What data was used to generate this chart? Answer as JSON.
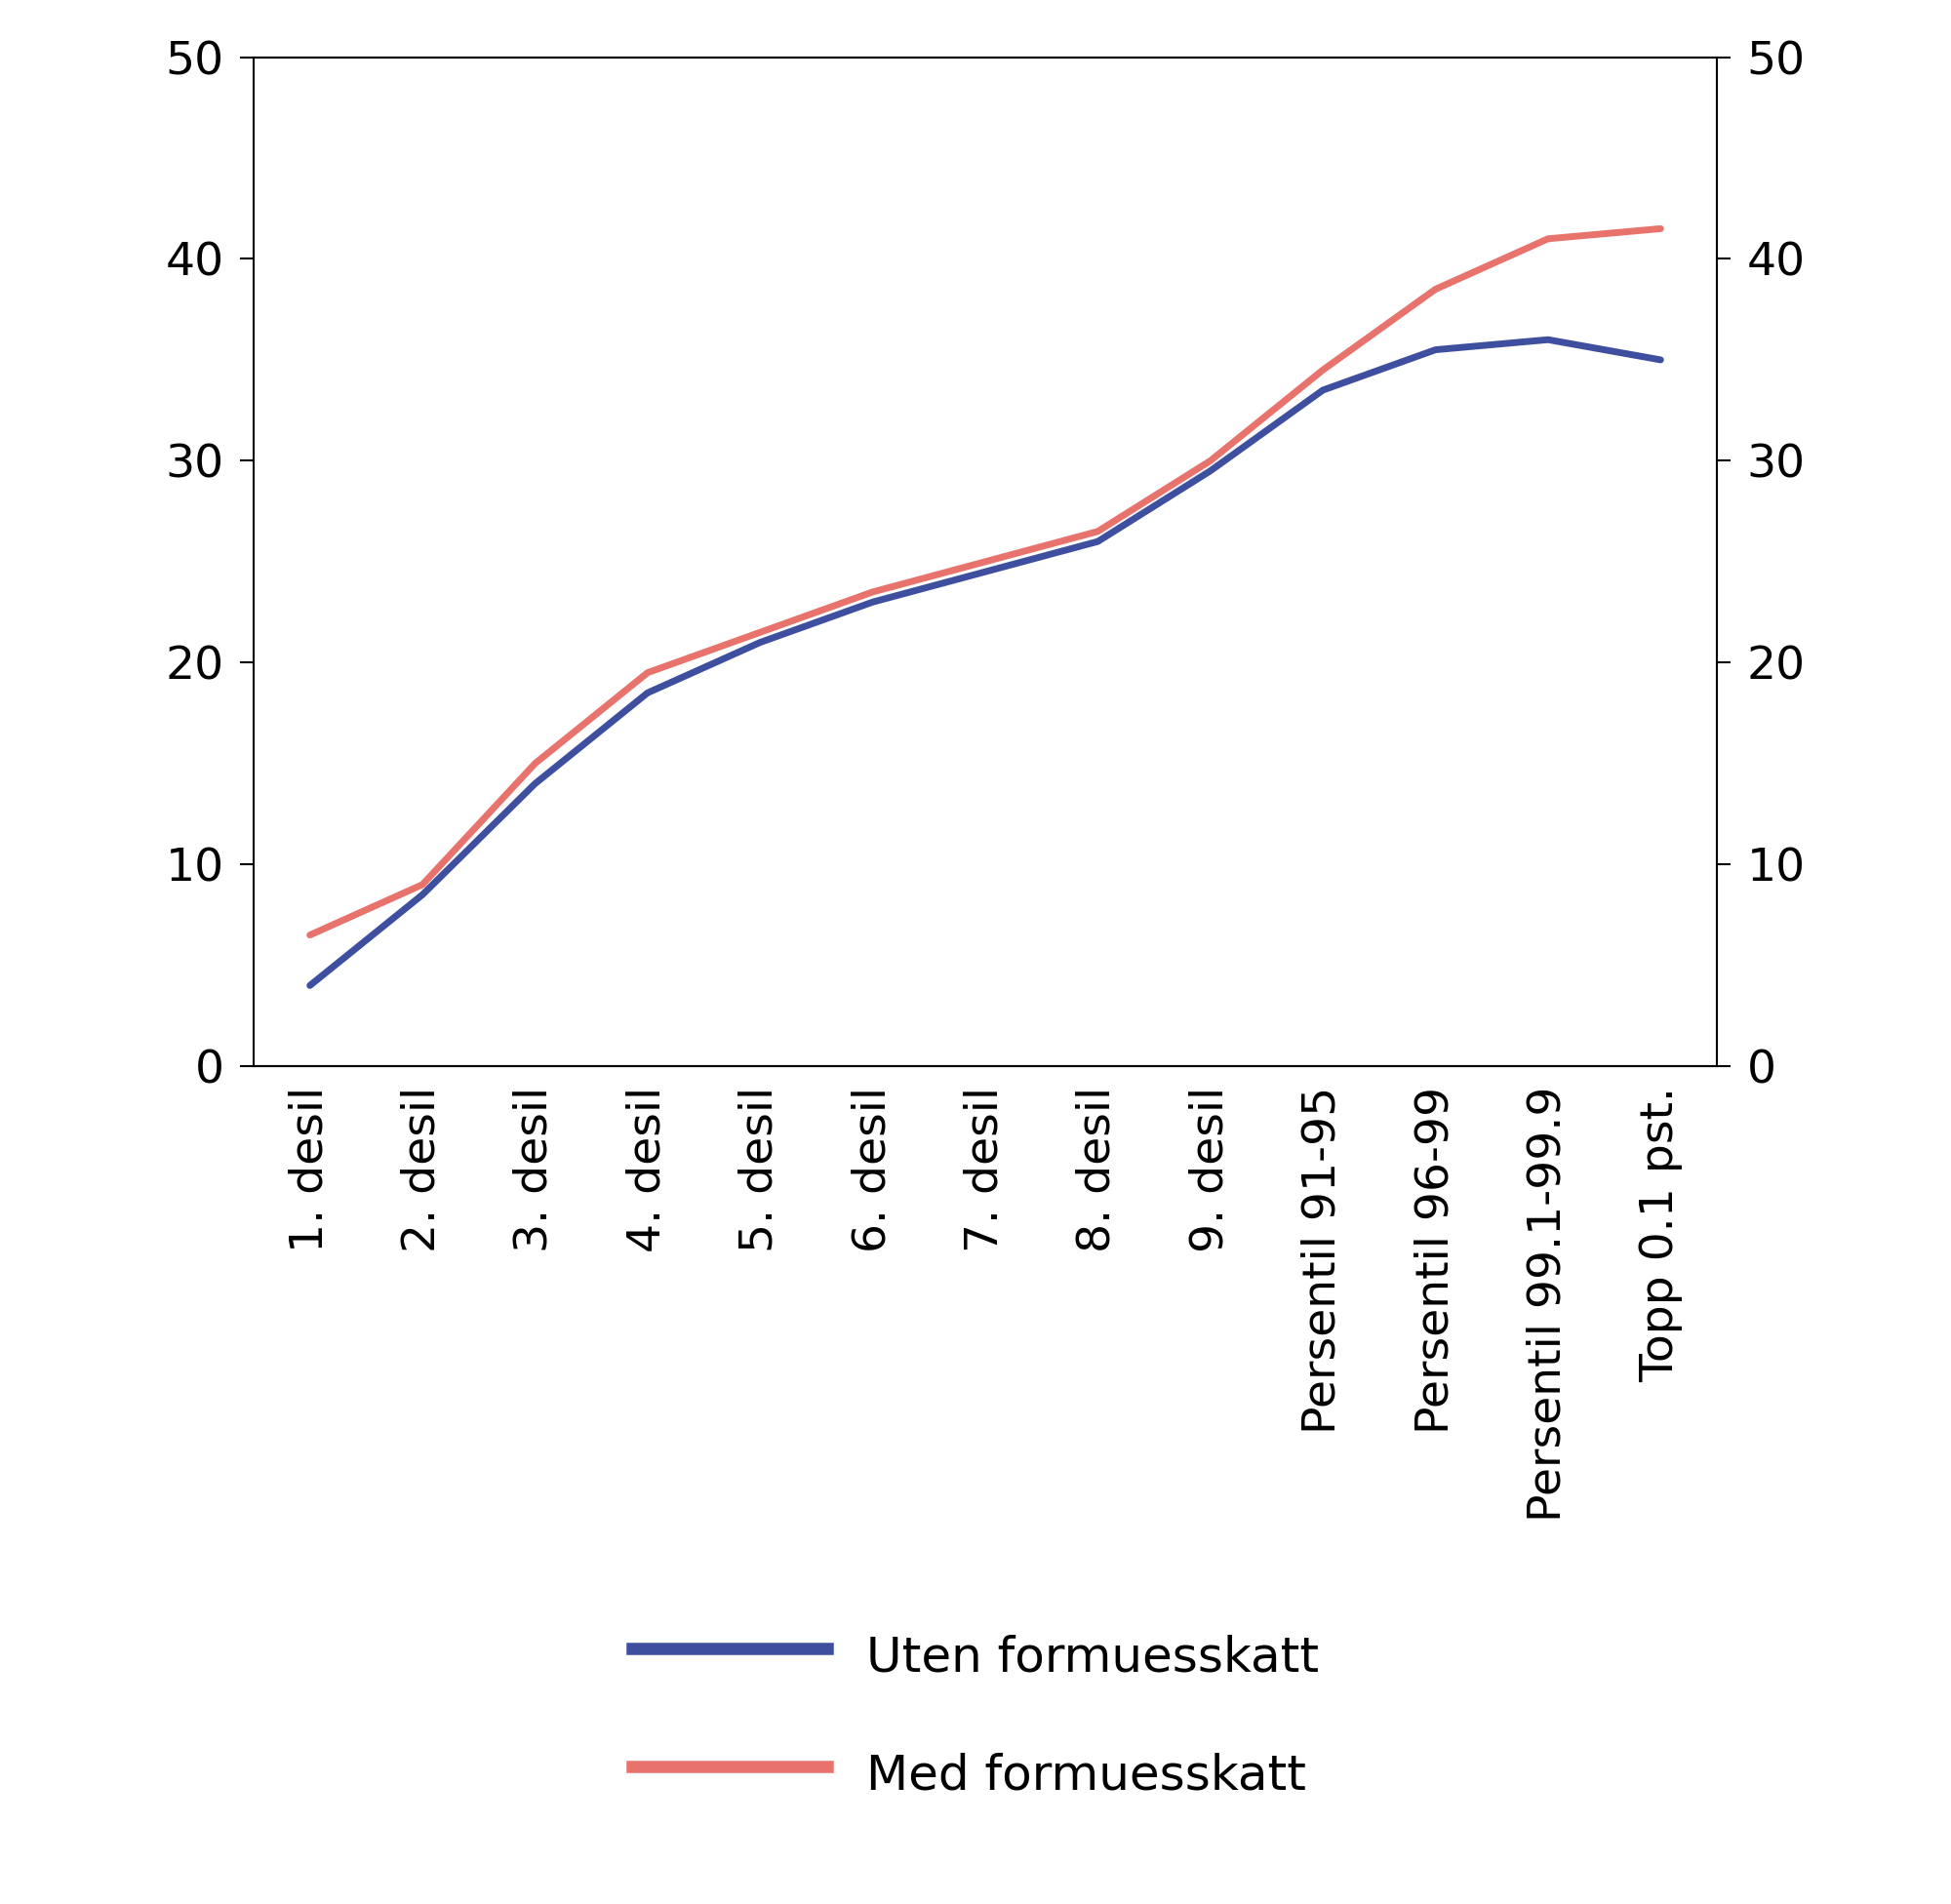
{
  "categories": [
    "1. desil",
    "2. desil",
    "3. desil",
    "4. desil",
    "5. desil",
    "6. desil",
    "7. desil",
    "8. desil",
    "9. desil",
    "Persentil 91-95",
    "Persentil 96-99",
    "Persentil 99.1-99.9",
    "Topp 0.1 pst."
  ],
  "uten_formuesskatt": [
    4.0,
    8.5,
    14.0,
    18.5,
    21.0,
    23.0,
    24.5,
    26.0,
    29.5,
    33.5,
    35.5,
    36.0,
    35.0
  ],
  "med_formuesskatt": [
    6.5,
    9.0,
    15.0,
    19.5,
    21.5,
    23.5,
    25.0,
    26.5,
    30.0,
    34.5,
    38.5,
    41.0,
    41.5
  ],
  "blue_color": "#3F4FA0",
  "red_color": "#E8736C",
  "ylim": [
    0,
    50
  ],
  "yticks": [
    0,
    10,
    20,
    30,
    40,
    50
  ],
  "line_width": 5,
  "legend_label_blue": "Uten formuesskatt",
  "legend_label_red": "Med formuesskatt",
  "background_color": "#ffffff",
  "font_size_ticks": 34,
  "font_size_legend": 36
}
